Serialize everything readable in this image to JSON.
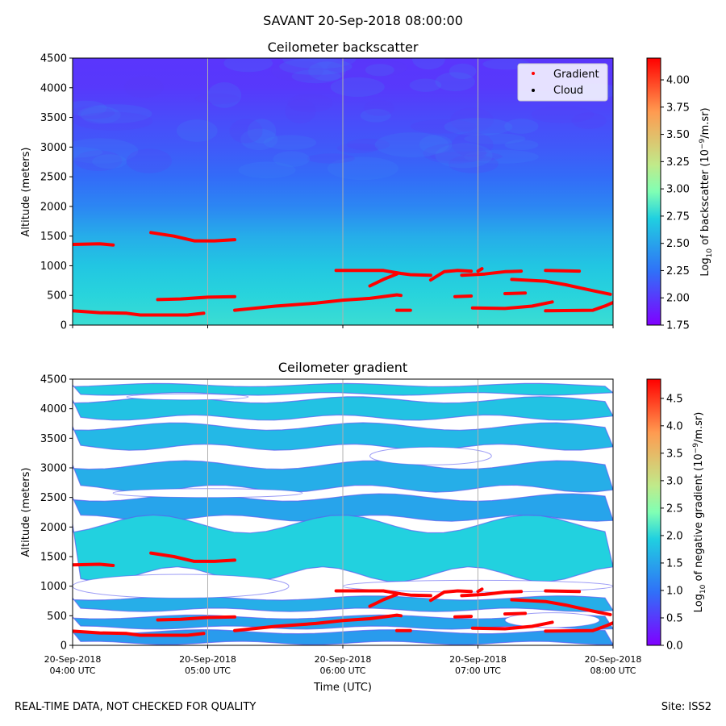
{
  "figure": {
    "title": "SAVANT 20-Sep-2018 08:00:00",
    "footer_left": "REAL-TIME DATA, NOT CHECKED FOR QUALITY",
    "footer_right": "Site: ISS2"
  },
  "chart_data": [
    {
      "type": "heatmap",
      "title": "Ceilometer backscatter",
      "ylabel": "Altitude (meters)",
      "xlabel": "",
      "xlim": [
        0,
        4
      ],
      "ylim": [
        0,
        4500
      ],
      "yticks": [
        0,
        500,
        1000,
        1500,
        2000,
        2500,
        3000,
        3500,
        4000,
        4500
      ],
      "xtick_values": [
        0,
        1,
        2,
        3,
        4
      ],
      "grid": "vertical lines at each hour",
      "colorbar": {
        "label": "Log10 of backscatter (10^-9/m.sr)",
        "label_parts": [
          "Log",
          "10",
          " of backscatter (10",
          "−9",
          "/m.sr)"
        ],
        "range": [
          1.75,
          4.2
        ],
        "ticks": [
          "1.75",
          "2.00",
          "2.25",
          "2.50",
          "2.75",
          "3.00",
          "3.25",
          "3.50",
          "3.75",
          "4.00"
        ],
        "colormap": "rainbow"
      },
      "background_field": [
        [
          4500,
          1.98
        ],
        [
          4000,
          2.0
        ],
        [
          3500,
          2.08
        ],
        [
          3000,
          2.14
        ],
        [
          2500,
          2.22
        ],
        [
          2000,
          2.35
        ],
        [
          1500,
          2.55
        ],
        [
          1000,
          2.68
        ],
        [
          500,
          2.75
        ],
        [
          0,
          2.8
        ]
      ],
      "legend": {
        "location": "upper-right",
        "entries": [
          {
            "label": "Gradient",
            "color": "#ff0000"
          },
          {
            "label": "Cloud",
            "color": "#000000"
          }
        ]
      }
    },
    {
      "type": "heatmap",
      "title": "Ceilometer gradient",
      "ylabel": "Altitude (meters)",
      "xlabel": "Time (UTC)",
      "xlim": [
        0,
        4
      ],
      "ylim": [
        0,
        4500
      ],
      "yticks": [
        0,
        500,
        1000,
        1500,
        2000,
        2500,
        3000,
        3500,
        4000,
        4500
      ],
      "xticks": [
        {
          "value": 0,
          "line1": "20-Sep-2018",
          "line2": "04:00 UTC"
        },
        {
          "value": 1,
          "line1": "20-Sep-2018",
          "line2": "05:00 UTC"
        },
        {
          "value": 2,
          "line1": "20-Sep-2018",
          "line2": "06:00 UTC"
        },
        {
          "value": 3,
          "line1": "20-Sep-2018",
          "line2": "07:00 UTC"
        },
        {
          "value": 4,
          "line1": "20-Sep-2018",
          "line2": "08:00 UTC"
        }
      ],
      "grid": "vertical lines at each hour",
      "colorbar": {
        "label": "Log10 of negative gradient (10^-9/m.sr)",
        "label_parts": [
          "Log",
          "10",
          " of negative gradient (10",
          "−9",
          "/m.sr)"
        ],
        "range": [
          0.0,
          4.85
        ],
        "ticks": [
          "0.0",
          "0.5",
          "1.0",
          "1.5",
          "2.0",
          "2.5",
          "3.0",
          "3.5",
          "4.0",
          "4.5"
        ],
        "colormap": "rainbow"
      },
      "bands": [
        {
          "y0": 4400,
          "y1": 4250,
          "v": 1.9
        },
        {
          "y0": 4150,
          "y1": 3850,
          "v": 1.8
        },
        {
          "y0": 3700,
          "y1": 3350,
          "v": 1.7
        },
        {
          "y0": 3050,
          "y1": 2650,
          "v": 1.6
        },
        {
          "y0": 2500,
          "y1": 2150,
          "v": 1.5
        },
        {
          "y0": 2050,
          "y1": 1200,
          "v": 1.95
        },
        {
          "y0": 800,
          "y1": 600,
          "v": 1.6
        },
        {
          "y0": 480,
          "y1": 300,
          "v": 1.5
        },
        {
          "y0": 230,
          "y1": 40,
          "v": 1.4
        }
      ],
      "gaps": [
        {
          "x0": 0.0,
          "x1": 1.6,
          "y0": 1200,
          "y1": 800
        },
        {
          "x0": 2.0,
          "x1": 4.0,
          "y0": 1100,
          "y1": 900
        },
        {
          "x0": 0.4,
          "x1": 1.3,
          "y0": 4250,
          "y1": 4150
        },
        {
          "x0": 2.2,
          "x1": 3.1,
          "y0": 3350,
          "y1": 3050
        },
        {
          "x0": 0.3,
          "x1": 1.7,
          "y0": 2650,
          "y1": 2500
        },
        {
          "x0": 3.2,
          "x1": 3.9,
          "y0": 550,
          "y1": 300
        }
      ]
    }
  ],
  "gradient_segments": [
    [
      [
        0.0,
        1360
      ],
      [
        0.2,
        1370
      ],
      [
        0.3,
        1350
      ]
    ],
    [
      [
        0.58,
        1560
      ],
      [
        0.75,
        1500
      ],
      [
        0.9,
        1420
      ],
      [
        1.05,
        1420
      ],
      [
        1.2,
        1440
      ]
    ],
    [
      [
        0.63,
        430
      ],
      [
        0.8,
        440
      ],
      [
        1.0,
        470
      ],
      [
        1.2,
        480
      ]
    ],
    [
      [
        0.0,
        240
      ],
      [
        0.2,
        210
      ],
      [
        0.4,
        200
      ],
      [
        0.5,
        170
      ],
      [
        0.7,
        170
      ],
      [
        0.85,
        170
      ],
      [
        0.97,
        200
      ]
    ],
    [
      [
        1.2,
        250
      ],
      [
        1.5,
        320
      ],
      [
        1.8,
        370
      ],
      [
        2.0,
        420
      ],
      [
        2.2,
        450
      ],
      [
        2.4,
        510
      ],
      [
        2.43,
        500
      ]
    ],
    [
      [
        1.95,
        920
      ],
      [
        2.3,
        920
      ],
      [
        2.43,
        870
      ],
      [
        2.5,
        850
      ],
      [
        2.65,
        840
      ]
    ],
    [
      [
        2.2,
        660
      ],
      [
        2.3,
        770
      ],
      [
        2.4,
        860
      ]
    ],
    [
      [
        2.65,
        760
      ],
      [
        2.75,
        900
      ],
      [
        2.85,
        920
      ],
      [
        2.95,
        910
      ]
    ],
    [
      [
        2.88,
        840
      ],
      [
        3.05,
        860
      ],
      [
        3.2,
        900
      ],
      [
        3.32,
        910
      ]
    ],
    [
      [
        3.0,
        910
      ],
      [
        3.03,
        950
      ]
    ],
    [
      [
        2.4,
        250
      ],
      [
        2.5,
        250
      ]
    ],
    [
      [
        2.83,
        480
      ],
      [
        2.95,
        490
      ]
    ],
    [
      [
        2.96,
        290
      ],
      [
        3.2,
        280
      ],
      [
        3.4,
        320
      ],
      [
        3.55,
        390
      ]
    ],
    [
      [
        3.2,
        530
      ],
      [
        3.35,
        540
      ]
    ],
    [
      [
        3.25,
        770
      ],
      [
        3.5,
        740
      ],
      [
        3.65,
        680
      ],
      [
        3.75,
        630
      ],
      [
        3.85,
        580
      ],
      [
        3.98,
        520
      ]
    ],
    [
      [
        3.5,
        920
      ],
      [
        3.75,
        910
      ]
    ],
    [
      [
        3.5,
        240
      ],
      [
        3.85,
        250
      ],
      [
        3.95,
        330
      ],
      [
        4.0,
        380
      ]
    ]
  ]
}
